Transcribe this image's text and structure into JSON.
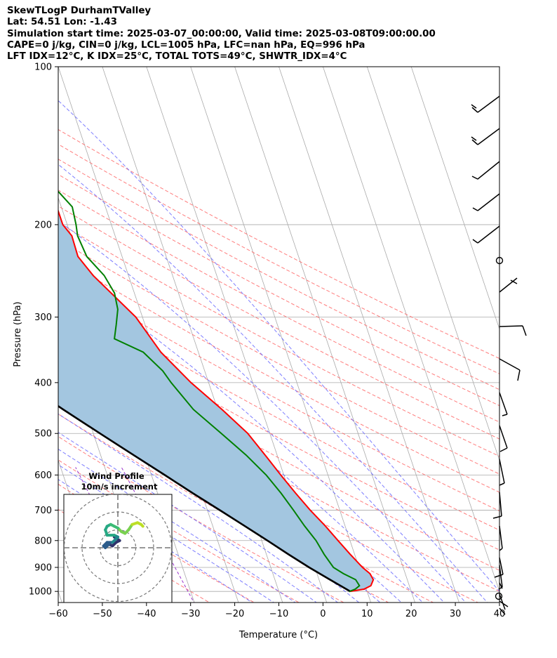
{
  "header": {
    "line1": "SkewTLogP DurhamTValley",
    "line2": "Lat: 54.51   Lon: -1.43",
    "line3": "Simulation start time: 2025-03-07_00:00:00, Valid time: 2025-03-08T09:00:00.00",
    "line4": "CAPE=0 j/kg, CIN=0 j/kg, LCL=1005 hPa, LFC=nan hPa, EQ=996 hPa",
    "line5": "LFT IDX=12°C, K IDX=25°C, TOTAL TOTS=49°C, SHWTR_IDX=4°C"
  },
  "chart_data": {
    "type": "line",
    "xlabel": "Temperature (°C)",
    "ylabel": "Pressure (hPa)",
    "xlim": [
      -60,
      40
    ],
    "ylim": [
      1050,
      100
    ],
    "y_scale": "log",
    "x_ticks": [
      -60,
      -50,
      -40,
      -30,
      -20,
      -10,
      0,
      10,
      20,
      30,
      40
    ],
    "y_ticks": [
      1000,
      900,
      800,
      700,
      600,
      500,
      400,
      300,
      200,
      100
    ],
    "grid": true,
    "colors": {
      "temperature": "#ff0000",
      "dewpoint": "#008000",
      "parcel": "#000000",
      "cape_fill": "#a3c6e0",
      "dry_adiabats": "#ff6666",
      "moist_adiabats": "#6666ff",
      "mixing_ratio": "#9933cc",
      "isotherms": "#aaaaaa"
    },
    "series": [
      {
        "key": "temperature",
        "points": [
          [
            1000,
            6.2
          ],
          [
            990,
            9.5
          ],
          [
            975,
            11.3
          ],
          [
            950,
            12.3
          ],
          [
            925,
            12.0
          ],
          [
            900,
            10.8
          ],
          [
            850,
            9.0
          ],
          [
            800,
            7.3
          ],
          [
            750,
            5.5
          ],
          [
            700,
            3.3
          ],
          [
            650,
            1.3
          ],
          [
            600,
            -0.7
          ],
          [
            550,
            -2.7
          ],
          [
            500,
            -5.0
          ],
          [
            450,
            -9.0
          ],
          [
            400,
            -14.0
          ],
          [
            350,
            -18.5
          ],
          [
            300,
            -21.5
          ],
          [
            250,
            -28.0
          ],
          [
            230,
            -30.0
          ],
          [
            210,
            -29.8
          ],
          [
            200,
            -31.0
          ],
          [
            180,
            -31.0
          ],
          [
            160,
            -30.0
          ],
          [
            140,
            -31.0
          ],
          [
            120,
            -33.0
          ],
          [
            110,
            -35.0
          ],
          [
            100,
            -37.0
          ]
        ]
      },
      {
        "key": "dewpoint",
        "points": [
          [
            1000,
            6.0
          ],
          [
            990,
            7.5
          ],
          [
            975,
            8.7
          ],
          [
            950,
            8.3
          ],
          [
            925,
            6.0
          ],
          [
            900,
            4.2
          ],
          [
            850,
            3.1
          ],
          [
            800,
            2.3
          ],
          [
            750,
            0.8
          ],
          [
            700,
            -0.5
          ],
          [
            650,
            -2.0
          ],
          [
            600,
            -4.0
          ],
          [
            550,
            -7.0
          ],
          [
            500,
            -11.0
          ],
          [
            450,
            -15.5
          ],
          [
            400,
            -18.5
          ],
          [
            380,
            -19.5
          ],
          [
            350,
            -22.5
          ],
          [
            330,
            -28.0
          ],
          [
            310,
            -26.5
          ],
          [
            290,
            -25.0
          ],
          [
            270,
            -24.5
          ],
          [
            250,
            -25.5
          ],
          [
            230,
            -28.0
          ],
          [
            210,
            -28.5
          ],
          [
            200,
            -28.0
          ],
          [
            185,
            -27.5
          ],
          [
            170,
            -30.0
          ],
          [
            160,
            -35.0
          ],
          [
            140,
            -37.0
          ],
          [
            120,
            -41.0
          ],
          [
            100,
            -47.0
          ]
        ]
      },
      {
        "key": "parcel",
        "points": [
          [
            1000,
            6.2
          ],
          [
            950,
            2.5
          ],
          [
            900,
            -1.3
          ],
          [
            850,
            -5.0
          ],
          [
            800,
            -8.7
          ],
          [
            750,
            -12.8
          ],
          [
            700,
            -17.2
          ],
          [
            650,
            -22.0
          ],
          [
            600,
            -27.0
          ],
          [
            550,
            -32.5
          ],
          [
            500,
            -38.5
          ],
          [
            450,
            -45.0
          ],
          [
            400,
            -52.0
          ],
          [
            350,
            -60.0
          ],
          [
            300,
            -68.5
          ],
          [
            250,
            -78.0
          ],
          [
            200,
            -89.0
          ],
          [
            150,
            -101.0
          ],
          [
            100,
            -117.0
          ]
        ]
      }
    ],
    "wind_barbs_label": "",
    "inset": {
      "title": "Wind Profile",
      "subtitle": "10m/s increment",
      "type": "hodograph",
      "rings_ms": [
        10,
        20,
        30
      ],
      "trace_uv": [
        [
          -2,
          6
        ],
        [
          1,
          4
        ],
        [
          -1,
          3
        ],
        [
          -3,
          1
        ],
        [
          -5,
          2
        ],
        [
          -7,
          0
        ],
        [
          -8,
          1
        ],
        [
          -6,
          3
        ],
        [
          -3,
          3
        ],
        [
          -1,
          5
        ],
        [
          0,
          6
        ],
        [
          -2,
          7
        ],
        [
          -6,
          7
        ],
        [
          -7,
          10
        ],
        [
          -6,
          12
        ],
        [
          -4,
          13
        ],
        [
          -2,
          12
        ],
        [
          0,
          11
        ],
        [
          1,
          10
        ],
        [
          2,
          9
        ],
        [
          4,
          8
        ],
        [
          6,
          10
        ],
        [
          8,
          13
        ],
        [
          11,
          14
        ],
        [
          13,
          13
        ],
        [
          14,
          12
        ]
      ]
    }
  }
}
